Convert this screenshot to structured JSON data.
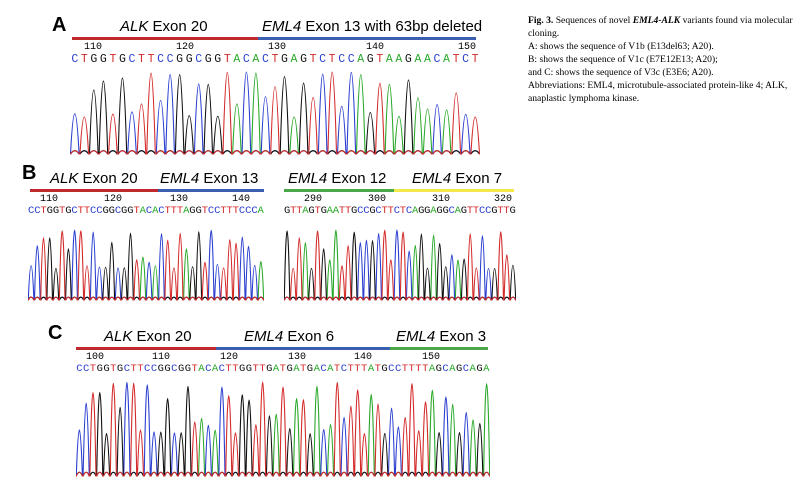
{
  "panels": [
    {
      "letter": "A",
      "segments": [
        {
          "gene": "ALK",
          "rest": " Exon 20"
        },
        {
          "gene": "EML4",
          "rest": " Exon 13 with 63bp deleted"
        }
      ],
      "positions": [
        "110",
        "120",
        "130",
        "140",
        "150"
      ],
      "sequence": "CTGGTGCTTCCGGCGGTACACTGAGTCTCCAGTAAGAACATCT"
    },
    {
      "letter": "B",
      "left": {
        "segments": [
          {
            "gene": "ALK",
            "rest": " Exon 20"
          },
          {
            "gene": "EML4",
            "rest": " Exon 13"
          }
        ],
        "positions": [
          "110",
          "120",
          "130",
          "140"
        ],
        "sequence": "CCTGGTGCTTCCGGCGGTACACTTTAGGTCCTTTCCCA"
      },
      "right": {
        "segments": [
          {
            "gene": "EML4",
            "rest": " Exon 12"
          },
          {
            "gene": "EML4",
            "rest": " Exon 7"
          }
        ],
        "positions": [
          "290",
          "300",
          "310",
          "320"
        ],
        "sequence": "GTTAGTGAATTGCCGCTTCTCAGGAGGCAGTTCCGTTG"
      }
    },
    {
      "letter": "C",
      "segments": [
        {
          "gene": "ALK",
          "rest": " Exon 20"
        },
        {
          "gene": "EML4",
          "rest": " Exon 6"
        },
        {
          "gene": "EML4",
          "rest": " Exon 3"
        }
      ],
      "positions": [
        "100",
        "110",
        "120",
        "130",
        "140",
        "150"
      ],
      "sequence": "CCTGGTGCTTCCGGCGGTACACTTGGTTGATGATGACATCTTTATGCCTTTTAGCAGCAGA"
    }
  ],
  "caption": {
    "fig_label": "Fig. 3.",
    "title_pre": " Sequences of novel ",
    "title_gene": "EML4-ALK",
    "title_post": " variants found via molecular cloning.",
    "lines": [
      "A: shows the sequence of V1b (E13del63; A20).",
      "B: shows the sequence of V1c (E7E12E13; A20);",
      "and C: shows the sequence of V3c (E3E6; A20).",
      "Abbreviations: EML4, microtubule-associated protein-like 4; ALK, anaplastic lymphoma kinase."
    ]
  },
  "colors": {
    "A": "#28a828",
    "C": "#2a3fd0",
    "G": "#111111",
    "T": "#d42a2a",
    "alk_bar": "#c0282d",
    "eml4_bar": "#3a5fb0",
    "exon12_bar": "#4aa84a",
    "exon7_bar": "#f2e84a"
  }
}
